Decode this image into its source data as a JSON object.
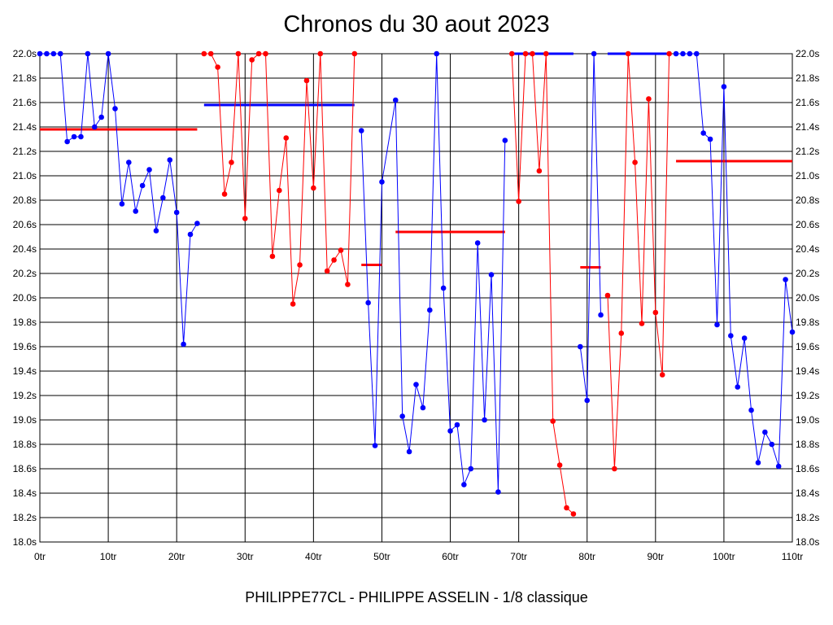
{
  "title": "Chronos du 30 aout 2023",
  "footer": "PHILIPPE77CL - PHILIPPE ASSELIN - 1/8 classique",
  "colors": {
    "blue": "#0000ff",
    "red": "#ff0000",
    "grid": "#000000"
  },
  "chart_data": {
    "type": "line",
    "xlim": [
      0,
      110
    ],
    "ylim": [
      18.0,
      22.0
    ],
    "x_ticks": [
      0,
      10,
      20,
      30,
      40,
      50,
      60,
      70,
      80,
      90,
      100,
      110
    ],
    "x_tick_labels": [
      "0tr",
      "10tr",
      "20tr",
      "30tr",
      "40tr",
      "50tr",
      "60tr",
      "70tr",
      "80tr",
      "90tr",
      "100tr",
      "110tr"
    ],
    "y_ticks": [
      18.0,
      18.2,
      18.4,
      18.6,
      18.8,
      19.0,
      19.2,
      19.4,
      19.6,
      19.8,
      20.0,
      20.2,
      20.4,
      20.6,
      20.8,
      21.0,
      21.2,
      21.4,
      21.6,
      21.8,
      22.0
    ],
    "y_tick_labels": [
      "18.0s",
      "18.2s",
      "18.4s",
      "18.6s",
      "18.8s",
      "19.0s",
      "19.2s",
      "19.4s",
      "19.6s",
      "19.8s",
      "20.0s",
      "20.2s",
      "20.4s",
      "20.6s",
      "20.8s",
      "21.0s",
      "21.2s",
      "21.4s",
      "21.6s",
      "21.8s",
      "22.0s"
    ],
    "grid": true,
    "segments": [
      {
        "color": "blue",
        "points": [
          [
            0,
            22.0
          ],
          [
            1,
            22.0
          ],
          [
            2,
            22.0
          ],
          [
            3,
            22.0
          ],
          [
            4,
            21.28
          ],
          [
            5,
            21.32
          ],
          [
            6,
            21.32
          ],
          [
            7,
            22.0
          ],
          [
            8,
            21.4
          ],
          [
            9,
            21.48
          ],
          [
            10,
            22.0
          ],
          [
            11,
            21.55
          ],
          [
            12,
            20.77
          ],
          [
            13,
            21.11
          ],
          [
            14,
            20.71
          ],
          [
            15,
            20.92
          ],
          [
            16,
            21.05
          ],
          [
            17,
            20.55
          ],
          [
            18,
            20.82
          ],
          [
            19,
            21.13
          ],
          [
            20,
            20.7
          ],
          [
            21,
            19.62
          ],
          [
            22,
            20.52
          ],
          [
            23,
            20.61
          ]
        ]
      },
      {
        "color": "red",
        "points": [
          [
            24,
            22.0
          ],
          [
            25,
            22.0
          ],
          [
            26,
            21.89
          ],
          [
            27,
            20.85
          ],
          [
            28,
            21.11
          ],
          [
            29,
            22.0
          ],
          [
            30,
            20.65
          ],
          [
            31,
            21.95
          ],
          [
            32,
            22.0
          ],
          [
            33,
            22.0
          ],
          [
            34,
            20.34
          ],
          [
            35,
            20.88
          ],
          [
            36,
            21.31
          ],
          [
            37,
            19.95
          ],
          [
            38,
            20.27
          ],
          [
            39,
            21.78
          ],
          [
            40,
            20.9
          ],
          [
            41,
            22.0
          ],
          [
            42,
            20.22
          ],
          [
            43,
            20.31
          ],
          [
            44,
            20.39
          ],
          [
            45,
            20.11
          ],
          [
            46,
            22.0
          ]
        ]
      },
      {
        "color": "blue",
        "points": [
          [
            47,
            21.37
          ],
          [
            48,
            19.96
          ],
          [
            49,
            18.79
          ],
          [
            50,
            20.95
          ],
          [
            52,
            21.62
          ],
          [
            53,
            19.03
          ],
          [
            54,
            18.74
          ],
          [
            55,
            19.29
          ],
          [
            56,
            19.1
          ],
          [
            57,
            19.9
          ],
          [
            58,
            22.0
          ],
          [
            59,
            20.08
          ],
          [
            60,
            18.91
          ],
          [
            61,
            18.96
          ],
          [
            62,
            18.47
          ],
          [
            63,
            18.6
          ],
          [
            64,
            20.45
          ],
          [
            65,
            19.0
          ],
          [
            66,
            20.19
          ],
          [
            67,
            18.41
          ],
          [
            68,
            21.29
          ]
        ]
      },
      {
        "color": "red",
        "points": [
          [
            69,
            22.0
          ],
          [
            70,
            20.79
          ],
          [
            71,
            22.0
          ],
          [
            72,
            22.0
          ],
          [
            73,
            21.04
          ],
          [
            74,
            22.0
          ],
          [
            75,
            18.99
          ],
          [
            76,
            18.63
          ],
          [
            77,
            18.28
          ],
          [
            78,
            18.23
          ]
        ]
      },
      {
        "color": "blue",
        "points": [
          [
            79,
            19.6
          ],
          [
            80,
            19.16
          ],
          [
            81,
            22.0
          ],
          [
            82,
            19.86
          ]
        ]
      },
      {
        "color": "red",
        "points": [
          [
            83,
            20.02
          ],
          [
            84,
            18.6
          ],
          [
            85,
            19.71
          ],
          [
            86,
            22.0
          ],
          [
            87,
            21.11
          ],
          [
            88,
            19.79
          ],
          [
            89,
            21.63
          ],
          [
            90,
            19.88
          ],
          [
            91,
            19.37
          ],
          [
            92,
            22.0
          ]
        ]
      },
      {
        "color": "blue",
        "points": [
          [
            93,
            22.0
          ],
          [
            94,
            22.0
          ],
          [
            95,
            22.0
          ],
          [
            96,
            22.0
          ],
          [
            97,
            21.35
          ],
          [
            98,
            21.3
          ],
          [
            99,
            19.78
          ],
          [
            100,
            21.73
          ],
          [
            101,
            19.69
          ],
          [
            102,
            19.27
          ],
          [
            103,
            19.67
          ],
          [
            104,
            19.08
          ],
          [
            105,
            18.65
          ],
          [
            106,
            18.9
          ],
          [
            107,
            18.8
          ],
          [
            108,
            18.62
          ],
          [
            109,
            20.15
          ],
          [
            110,
            19.72
          ]
        ]
      }
    ],
    "averages": [
      {
        "color": "red",
        "x": [
          0,
          23
        ],
        "y": 21.38
      },
      {
        "color": "blue",
        "x": [
          24,
          46
        ],
        "y": 21.58
      },
      {
        "color": "red",
        "x": [
          47,
          50
        ],
        "y": 20.27
      },
      {
        "color": "blue",
        "x": [
          69,
          78
        ],
        "y": 22.0
      },
      {
        "color": "red",
        "x": [
          52,
          68
        ],
        "y": 20.54
      },
      {
        "color": "red",
        "x": [
          79,
          82
        ],
        "y": 20.25
      },
      {
        "color": "blue",
        "x": [
          83,
          92
        ],
        "y": 22.0
      },
      {
        "color": "red",
        "x": [
          93,
          110
        ],
        "y": 21.12
      }
    ]
  }
}
